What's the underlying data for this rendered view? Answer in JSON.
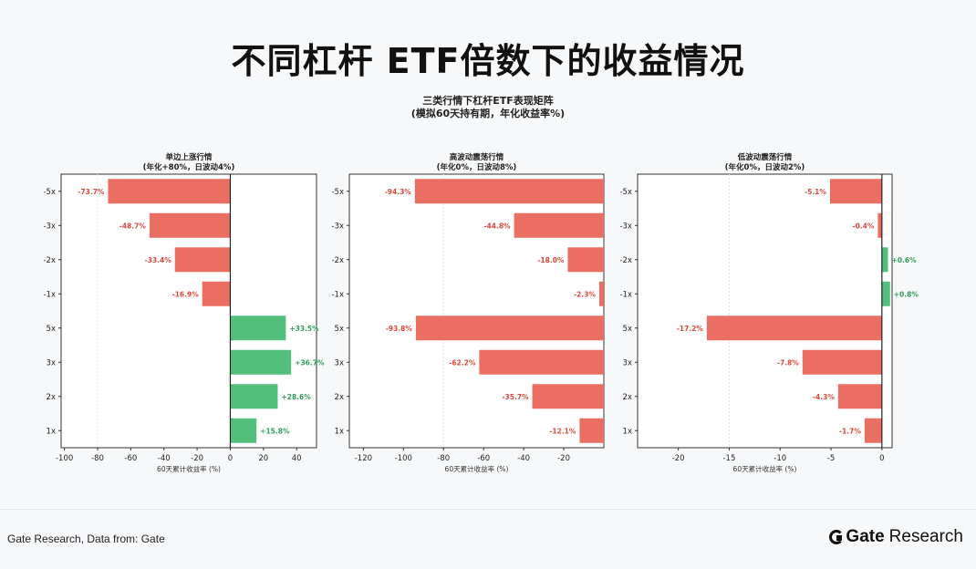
{
  "header": {
    "title": "不同杠杆 ETF倍数下的收益情况",
    "figure_title_line1": "三类行情下杠杆ETF表现矩阵",
    "figure_title_line2": "(模拟60天持有期，年化收益率%)"
  },
  "footer": {
    "source": "Gate Research, Data from: Gate",
    "brand_word1": "Gate",
    "brand_word2": "Research"
  },
  "colors": {
    "positive": "#52bf7c",
    "negative": "#ea6f62",
    "positive_text": "#2e9e57",
    "negative_text": "#d9493b"
  },
  "chart_data": [
    {
      "type": "bar",
      "orientation": "horizontal",
      "title": "单边上涨行情",
      "subtitle": "(年化+80%，日波动4%)",
      "xlabel": "60天累计收益率 (%)",
      "categories": [
        "-5x",
        "-3x",
        "-2x",
        "-1x",
        "5x",
        "3x",
        "2x",
        "1x"
      ],
      "values": [
        -73.7,
        -48.7,
        -33.4,
        -16.9,
        33.5,
        36.7,
        28.6,
        15.8
      ],
      "labels": [
        "-73.7%",
        "-48.7%",
        "-33.4%",
        "-16.9%",
        "+33.5%",
        "+36.7%",
        "+28.6%",
        "+15.8%"
      ],
      "xlim": [
        -102,
        52
      ],
      "xticks": [
        -100,
        -80,
        -60,
        -40,
        -20,
        0,
        20,
        40
      ],
      "xtick_labels": [
        "-100",
        "-80",
        "-60",
        "-40",
        "-20",
        "0",
        "20",
        "40"
      ],
      "reference_line": -80
    },
    {
      "type": "bar",
      "orientation": "horizontal",
      "title": "高波动震荡行情",
      "subtitle": "(年化0%，日波动8%)",
      "xlabel": "60天累计收益率 (%)",
      "categories": [
        "-5x",
        "-3x",
        "-2x",
        "-1x",
        "5x",
        "3x",
        "2x",
        "1x"
      ],
      "values": [
        -94.3,
        -44.8,
        -18.0,
        -2.3,
        -93.8,
        -62.2,
        -35.7,
        -12.1
      ],
      "labels": [
        "-94.3%",
        "-44.8%",
        "-18.0%",
        "-2.3%",
        "-93.8%",
        "-62.2%",
        "-35.7%",
        "-12.1%"
      ],
      "xlim": [
        -127,
        0
      ],
      "xticks": [
        -120,
        -100,
        -80,
        -60,
        -40,
        -20
      ],
      "xtick_labels": [
        "-120",
        "-100",
        "-80",
        "-60",
        "-40",
        "-20"
      ],
      "reference_line": -80
    },
    {
      "type": "bar",
      "orientation": "horizontal",
      "title": "低波动震荡行情",
      "subtitle": "(年化0%，日波动2%)",
      "xlabel": "60天累计收益率 (%)",
      "categories": [
        "-5x",
        "-3x",
        "-2x",
        "-1x",
        "5x",
        "3x",
        "2x",
        "1x"
      ],
      "values": [
        -5.1,
        -0.4,
        0.6,
        0.8,
        -17.2,
        -7.8,
        -4.3,
        -1.7
      ],
      "labels": [
        "-5.1%",
        "-0.4%",
        "+0.6%",
        "+0.8%",
        "-17.2%",
        "-7.8%",
        "-4.3%",
        "-1.7%"
      ],
      "xlim": [
        -24,
        1
      ],
      "xticks": [
        -20,
        -15,
        -10,
        -5,
        0
      ],
      "xtick_labels": [
        "-20",
        "-15",
        "-10",
        "-5",
        "0"
      ],
      "reference_line": -15
    }
  ]
}
